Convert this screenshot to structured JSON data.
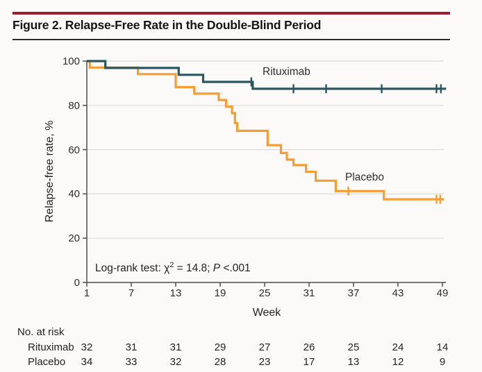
{
  "figure": {
    "title": "Figure 2. Relapse-Free Rate in the Double-Blind Period",
    "accent_color": "#9d1c32",
    "rule_color": "#2b2b2b",
    "background_color": "#fbfaf8"
  },
  "chart_data": {
    "type": "line",
    "variant": "kaplan_meier_step",
    "xlabel": "Week",
    "ylabel": "Relapse-free rate, %",
    "xlim": [
      1,
      49
    ],
    "ylim": [
      0,
      100
    ],
    "x_ticks": [
      1,
      7,
      13,
      19,
      25,
      31,
      37,
      43,
      49
    ],
    "y_ticks": [
      0,
      20,
      40,
      60,
      80,
      100
    ],
    "grid": "horizontal",
    "gridline_color": "#dddbd7",
    "axis_color": "#4d4d4d",
    "annotation": {
      "pre": "Log-rank test: χ",
      "sup": "2",
      "mid": " = 14.8; ",
      "p": "P",
      "post": " <.001"
    },
    "series": [
      {
        "name": "Placebo",
        "color": "#f59d33",
        "steps": [
          [
            1,
            100
          ],
          [
            1.4,
            97.1
          ],
          [
            7.9,
            94.1
          ],
          [
            13,
            88.2
          ],
          [
            15.5,
            85.3
          ],
          [
            18.8,
            82.4
          ],
          [
            19.8,
            79.4
          ],
          [
            20.6,
            76.5
          ],
          [
            21.0,
            72
          ],
          [
            21.3,
            68.5
          ],
          [
            25.4,
            62
          ],
          [
            27.2,
            58.5
          ],
          [
            28,
            55.5
          ],
          [
            28.9,
            53
          ],
          [
            30.6,
            50
          ],
          [
            31.9,
            46
          ],
          [
            34.6,
            41.3
          ],
          [
            41.1,
            37.6
          ],
          [
            49.2,
            37.6
          ]
        ],
        "censor_ticks": [
          [
            36.3,
            41.3
          ],
          [
            48.2,
            37.6
          ],
          [
            48.7,
            37.6
          ]
        ]
      },
      {
        "name": "Rituximab",
        "color": "#2d5560",
        "steps": [
          [
            1,
            100
          ],
          [
            3.5,
            96.9
          ],
          [
            13.4,
            93.8
          ],
          [
            16.7,
            90.6
          ],
          [
            23.4,
            87.5
          ],
          [
            49.5,
            87.5
          ]
        ],
        "censor_ticks": [
          [
            23.2,
            90.6
          ],
          [
            28.9,
            87.5
          ],
          [
            33.3,
            87.5
          ],
          [
            40.8,
            87.5
          ],
          [
            48.2,
            87.5
          ],
          [
            48.8,
            87.5
          ]
        ]
      }
    ]
  },
  "at_risk": {
    "heading": "No. at risk",
    "rows": [
      {
        "label": "Rituximab",
        "values": [
          32,
          31,
          31,
          29,
          27,
          26,
          25,
          24,
          14
        ]
      },
      {
        "label": "Placebo",
        "values": [
          34,
          33,
          32,
          28,
          23,
          17,
          13,
          12,
          9
        ]
      }
    ]
  }
}
